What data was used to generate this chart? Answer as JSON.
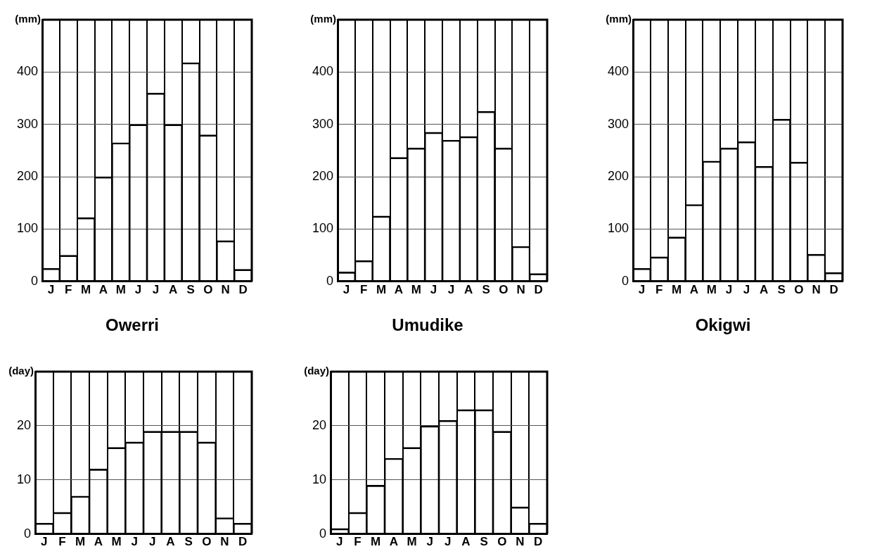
{
  "chart_data": [
    {
      "type": "bar",
      "title": "Owerri",
      "ylabel": "(mm)",
      "categories": [
        "J",
        "F",
        "M",
        "A",
        "M",
        "J",
        "J",
        "A",
        "S",
        "O",
        "N",
        "D"
      ],
      "values": [
        25,
        50,
        122,
        200,
        265,
        300,
        360,
        300,
        418,
        280,
        78,
        23
      ],
      "color": "#000000",
      "ylim": [
        0,
        500
      ],
      "yticks": [
        0,
        100,
        200,
        300,
        400
      ],
      "grid": true
    },
    {
      "type": "bar",
      "title": "Umudike",
      "ylabel": "(mm)",
      "categories": [
        "J",
        "F",
        "M",
        "A",
        "M",
        "J",
        "J",
        "A",
        "S",
        "O",
        "N",
        "D"
      ],
      "values": [
        18,
        40,
        125,
        237,
        255,
        285,
        270,
        277,
        325,
        255,
        67,
        15
      ],
      "color": "#000000",
      "ylim": [
        0,
        500
      ],
      "yticks": [
        0,
        100,
        200,
        300,
        400
      ],
      "grid": true
    },
    {
      "type": "bar",
      "title": "Okigwi",
      "ylabel": "(mm)",
      "categories": [
        "J",
        "F",
        "M",
        "A",
        "M",
        "J",
        "J",
        "A",
        "S",
        "O",
        "N",
        "D"
      ],
      "values": [
        25,
        47,
        85,
        147,
        230,
        255,
        267,
        220,
        310,
        228,
        52,
        17
      ],
      "color": "#000000",
      "ylim": [
        0,
        500
      ],
      "yticks": [
        0,
        100,
        200,
        300,
        400
      ],
      "grid": true
    },
    {
      "type": "bar",
      "ylabel": "(day)",
      "categories": [
        "J",
        "F",
        "M",
        "A",
        "M",
        "J",
        "J",
        "A",
        "S",
        "O",
        "N",
        "D"
      ],
      "values": [
        2,
        4,
        7,
        12,
        16,
        17,
        19,
        19,
        19,
        17,
        3,
        2
      ],
      "color": "#000000",
      "ylim": [
        0,
        30
      ],
      "yticks": [
        0,
        10,
        20
      ],
      "grid": true
    },
    {
      "type": "bar",
      "ylabel": "(day)",
      "categories": [
        "J",
        "F",
        "M",
        "A",
        "M",
        "J",
        "J",
        "A",
        "S",
        "O",
        "N",
        "D"
      ],
      "values": [
        1,
        4,
        9,
        14,
        16,
        20,
        21,
        23,
        23,
        19,
        5,
        2
      ],
      "color": "#000000",
      "ylim": [
        0,
        30
      ],
      "yticks": [
        0,
        10,
        20
      ],
      "grid": true
    }
  ]
}
